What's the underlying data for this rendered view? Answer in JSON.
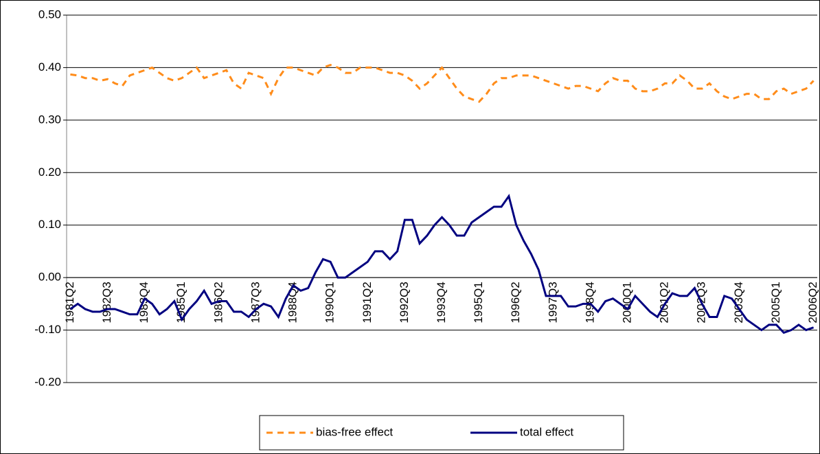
{
  "chart_data": {
    "type": "line",
    "categories": [
      "1981Q2",
      null,
      null,
      null,
      null,
      "1982Q3",
      null,
      null,
      null,
      null,
      "1983Q4",
      null,
      null,
      null,
      null,
      "1985Q1",
      null,
      null,
      null,
      null,
      "1986Q2",
      null,
      null,
      null,
      null,
      "1987Q3",
      null,
      null,
      null,
      null,
      "1988Q4",
      null,
      null,
      null,
      null,
      "1990Q1",
      null,
      null,
      null,
      null,
      "1991Q2",
      null,
      null,
      null,
      null,
      "1992Q3",
      null,
      null,
      null,
      null,
      "1993Q4",
      null,
      null,
      null,
      null,
      "1995Q1",
      null,
      null,
      null,
      null,
      "1996Q2",
      null,
      null,
      null,
      null,
      "1997Q3",
      null,
      null,
      null,
      null,
      "1998Q4",
      null,
      null,
      null,
      null,
      "2000Q1",
      null,
      null,
      null,
      null,
      "2001Q2",
      null,
      null,
      null,
      null,
      "2002Q3",
      null,
      null,
      null,
      null,
      "2003Q4",
      null,
      null,
      null,
      null,
      "2005Q1",
      null,
      null,
      null,
      null,
      "2006Q2"
    ],
    "series": [
      {
        "name": "bias-free effect",
        "color": "#ff8c1a",
        "dash": true,
        "values": [
          0.387,
          0.385,
          0.38,
          0.38,
          0.375,
          0.378,
          0.37,
          0.365,
          0.385,
          0.39,
          0.395,
          0.4,
          0.39,
          0.38,
          0.375,
          0.38,
          0.39,
          0.4,
          0.38,
          0.385,
          0.39,
          0.395,
          0.37,
          0.36,
          0.39,
          0.385,
          0.38,
          0.35,
          0.38,
          0.4,
          0.4,
          0.395,
          0.39,
          0.385,
          0.4,
          0.405,
          0.4,
          0.39,
          0.39,
          0.4,
          0.4,
          0.4,
          0.395,
          0.39,
          0.39,
          0.385,
          0.375,
          0.36,
          0.37,
          0.385,
          0.4,
          0.38,
          0.36,
          0.345,
          0.34,
          0.335,
          0.35,
          0.37,
          0.38,
          0.38,
          0.385,
          0.385,
          0.385,
          0.38,
          0.375,
          0.37,
          0.365,
          0.36,
          0.365,
          0.365,
          0.36,
          0.355,
          0.37,
          0.38,
          0.375,
          0.375,
          0.36,
          0.355,
          0.355,
          0.36,
          0.37,
          0.37,
          0.385,
          0.375,
          0.36,
          0.36,
          0.37,
          0.355,
          0.345,
          0.34,
          0.345,
          0.35,
          0.35,
          0.34,
          0.34,
          0.355,
          0.36,
          0.35,
          0.355,
          0.36,
          0.375
        ]
      },
      {
        "name": "total effect",
        "color": "#000080",
        "dash": false,
        "values": [
          -0.06,
          -0.05,
          -0.06,
          -0.065,
          -0.065,
          -0.06,
          -0.06,
          -0.065,
          -0.07,
          -0.07,
          -0.04,
          -0.05,
          -0.07,
          -0.06,
          -0.045,
          -0.08,
          -0.06,
          -0.045,
          -0.025,
          -0.05,
          -0.045,
          -0.045,
          -0.065,
          -0.065,
          -0.075,
          -0.06,
          -0.05,
          -0.055,
          -0.075,
          -0.04,
          -0.015,
          -0.025,
          -0.02,
          0.01,
          0.035,
          0.03,
          0.0,
          0.0,
          0.01,
          0.02,
          0.03,
          0.05,
          0.05,
          0.035,
          0.05,
          0.11,
          0.11,
          0.065,
          0.08,
          0.1,
          0.115,
          0.1,
          0.08,
          0.08,
          0.105,
          0.115,
          0.125,
          0.135,
          0.135,
          0.155,
          0.1,
          0.07,
          0.045,
          0.015,
          -0.035,
          -0.035,
          -0.035,
          -0.055,
          -0.055,
          -0.05,
          -0.05,
          -0.065,
          -0.045,
          -0.04,
          -0.05,
          -0.06,
          -0.035,
          -0.05,
          -0.065,
          -0.075,
          -0.05,
          -0.03,
          -0.035,
          -0.035,
          -0.02,
          -0.05,
          -0.075,
          -0.075,
          -0.035,
          -0.04,
          -0.06,
          -0.08,
          -0.09,
          -0.1,
          -0.09,
          -0.09,
          -0.105,
          -0.1,
          -0.09,
          -0.1,
          -0.095
        ]
      }
    ],
    "ylim": [
      -0.2,
      0.5
    ],
    "yticks": [
      {
        "value": -0.2,
        "label": "-0.20"
      },
      {
        "value": -0.1,
        "label": "-0.10"
      },
      {
        "value": 0,
        "label": "0.00"
      },
      {
        "value": 0.1,
        "label": "0.10"
      },
      {
        "value": 0.2,
        "label": "0.20"
      },
      {
        "value": 0.3,
        "label": "0.30"
      },
      {
        "value": 0.4,
        "label": "0.40"
      },
      {
        "value": 0.5,
        "label": "0.50"
      }
    ],
    "grid": true
  }
}
